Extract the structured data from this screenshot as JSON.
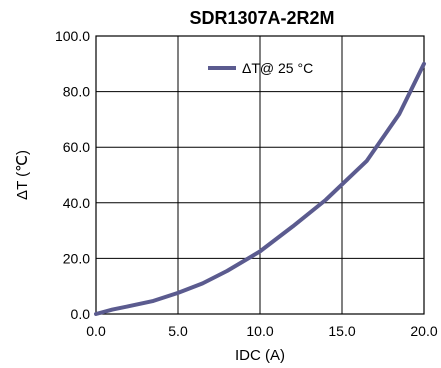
{
  "chart_data": {
    "type": "line",
    "title": "SDR1307A-2R2M",
    "xlabel": "IDC (A)",
    "ylabel": "ΔT (℃)",
    "xlim": [
      0,
      20
    ],
    "ylim": [
      0,
      100
    ],
    "x_ticks": [
      "0.0",
      "5.0",
      "10.0",
      "15.0",
      "20.0"
    ],
    "y_ticks": [
      "0.0",
      "20.0",
      "40.0",
      "60.0",
      "80.0",
      "100.0"
    ],
    "grid": true,
    "legend_position": "top-right",
    "series": [
      {
        "name": "ΔT@ 25 °C",
        "color": "#5b5b8f",
        "x": [
          0,
          1,
          2,
          3.5,
          5,
          6.5,
          8,
          10,
          12,
          14,
          16.5,
          18.5,
          20
        ],
        "y": [
          0,
          1.6,
          2.8,
          4.7,
          7.6,
          11,
          15.5,
          22.5,
          31.5,
          41,
          55,
          72,
          90
        ]
      }
    ]
  }
}
